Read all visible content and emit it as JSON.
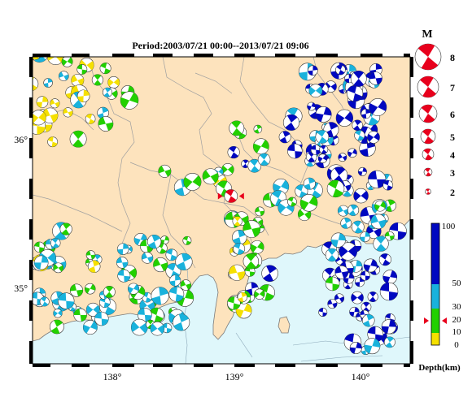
{
  "title": "Period:2003/07/21 00:00--2013/07/21 09:06",
  "map": {
    "x_ticks": [
      "138°",
      "139°",
      "140°"
    ],
    "y_ticks": [
      "36°",
      "35°"
    ],
    "land_color": "#fde3bd",
    "sea_color": "#dff7fb",
    "border_color": "#a0a0a0",
    "mainshock": {
      "lon": 138.97,
      "lat": 35.55,
      "color": "#e8001c"
    }
  },
  "magnitude_legend": {
    "label": "M",
    "items": [
      "8",
      "7",
      "6",
      "5",
      "4",
      "3",
      "2"
    ],
    "color": "#e8001c"
  },
  "depth_colorbar": {
    "label": "Depth(km)",
    "ticks": [
      "100",
      "50",
      "30",
      "20",
      "10",
      "0"
    ],
    "bands": [
      {
        "from": 0,
        "to": 10,
        "color": "#f5e000"
      },
      {
        "from": 10,
        "to": 30,
        "color": "#22d000"
      },
      {
        "from": 30,
        "to": 50,
        "color": "#19b2dc"
      },
      {
        "from": 50,
        "to": 100,
        "color": "#0008c0"
      }
    ],
    "marker_depth": 20,
    "marker_color": "#e8001c"
  },
  "events_palette": {
    "yellow": "#f5e000",
    "green": "#22d000",
    "cyan": "#19b2dc",
    "blue": "#0008c0"
  }
}
